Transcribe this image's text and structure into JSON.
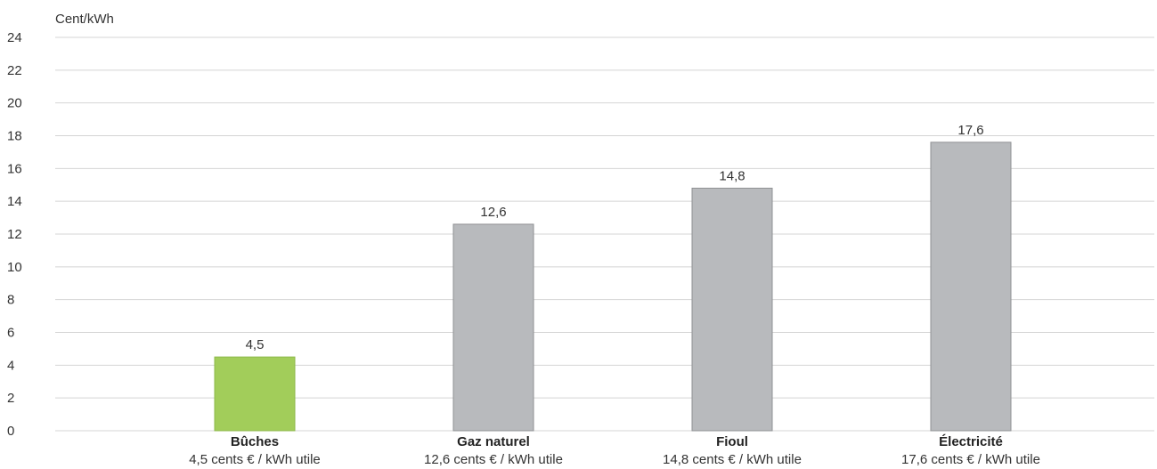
{
  "chart_data": {
    "type": "bar",
    "ylabel": "Cent/kWh",
    "ylim": [
      0,
      24
    ],
    "yticks": [
      "0",
      "2",
      "4",
      "6",
      "8",
      "10",
      "12",
      "14",
      "16",
      "18",
      "20",
      "22",
      "24"
    ],
    "grid": true,
    "categories": [
      "Bûches",
      "Gaz naturel",
      "Fioul",
      "Électricité"
    ],
    "sublabels": [
      "4,5 cents € / kWh utile",
      "12,6 cents € / kWh utile",
      "14,8 cents € / kWh utile",
      "17,6 cents € / kWh utile"
    ],
    "values": [
      4.5,
      12.6,
      14.8,
      17.6
    ],
    "value_labels": [
      "4,5",
      "12,6",
      "14,8",
      "17,6"
    ],
    "colors": {
      "highlight": "#a2cd5a",
      "bar": "#b8babd",
      "bar_edge": "#8f9194",
      "grid": "#d4d4d4"
    },
    "highlight_index": 0
  }
}
